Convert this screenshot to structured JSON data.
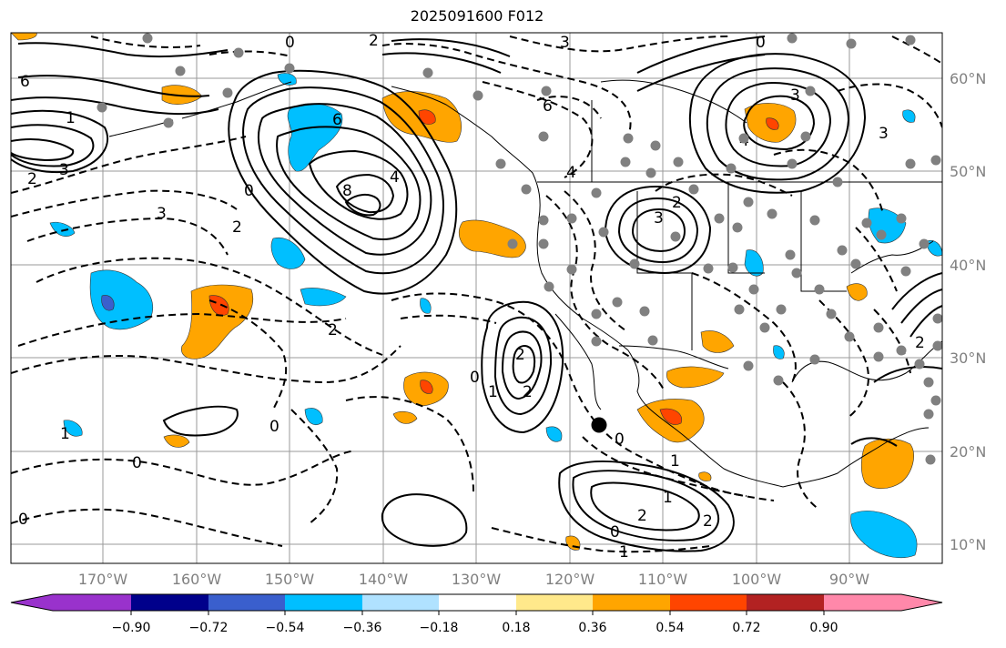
{
  "title": "2025091600 F012",
  "lat_labels": [
    "60°N",
    "50°N",
    "40°N",
    "30°N",
    "20°N",
    "10°N"
  ],
  "lon_labels": [
    "170°W",
    "160°W",
    "150°W",
    "140°W",
    "130°W",
    "120°W",
    "110°W",
    "100°W",
    "90°W"
  ],
  "colorbar": {
    "ticks": [
      "−0.90",
      "−0.72",
      "−0.54",
      "−0.36",
      "−0.18",
      "0.18",
      "0.36",
      "0.54",
      "0.72",
      "0.90"
    ],
    "colors": [
      "#9932CC",
      "#00008B",
      "#3A5FCD",
      "#00BFFF",
      "#B0E2FF",
      "#FFFFFF",
      "#FFE98B",
      "#FFA500",
      "#FF4500",
      "#B22222",
      "#FF88AA"
    ]
  },
  "contour_labels": [
    "0",
    "2",
    "3",
    "0",
    "1",
    "3",
    "2",
    "6",
    "8",
    "4",
    "2",
    "0",
    "6",
    "4",
    "3",
    "2",
    "3",
    "4",
    "3",
    "6",
    "3",
    "2",
    "0",
    "1",
    "2",
    "2",
    "0",
    "1",
    "2",
    "2",
    "0",
    "1",
    "0",
    "0",
    "1",
    "0",
    "2",
    "1"
  ],
  "hurricane_marker": "hurricane-center",
  "icons": [
    "station-dot-icon",
    "hurricane-center-icon"
  ]
}
